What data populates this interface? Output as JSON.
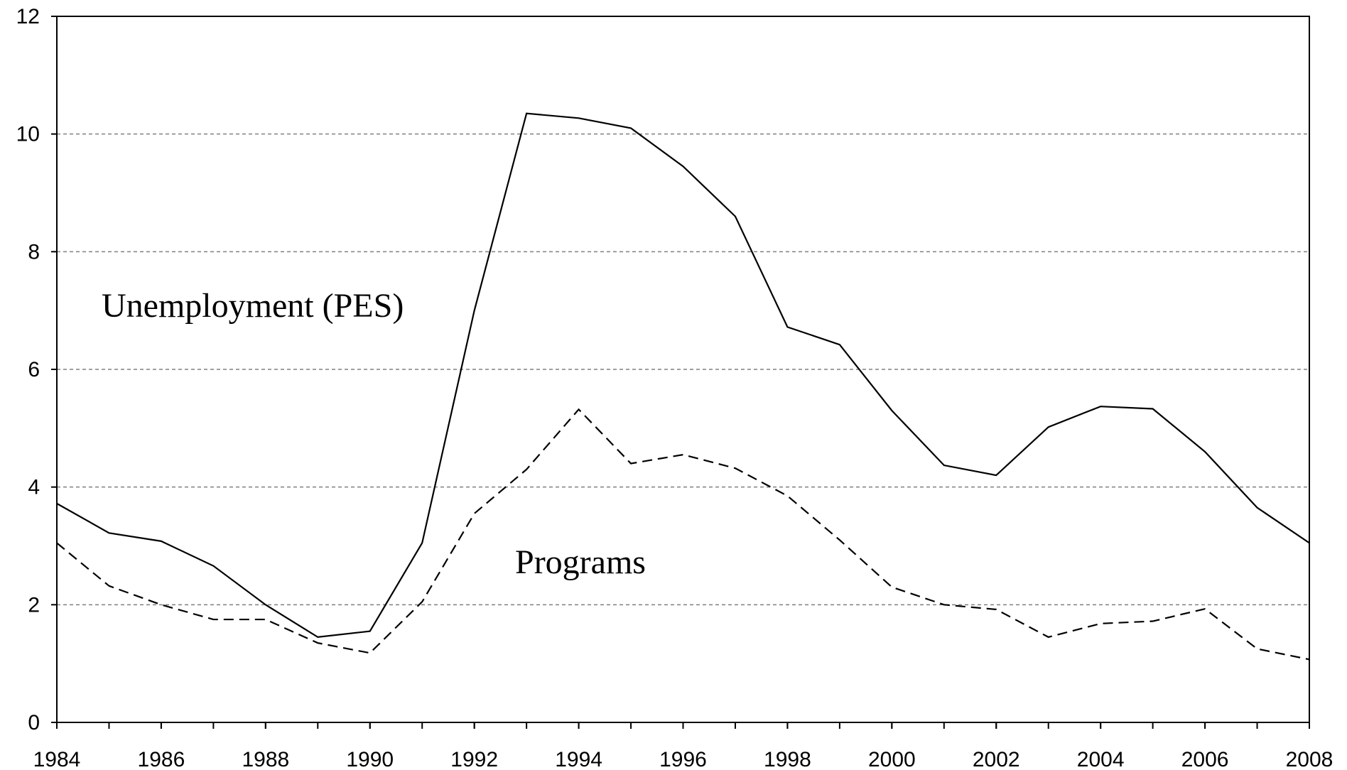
{
  "chart_data": {
    "type": "line",
    "x": [
      1984,
      1985,
      1986,
      1987,
      1988,
      1989,
      1990,
      1991,
      1992,
      1993,
      1994,
      1995,
      1996,
      1997,
      1998,
      1999,
      2000,
      2001,
      2002,
      2003,
      2004,
      2005,
      2006,
      2007,
      2008
    ],
    "series": [
      {
        "name": "Unemployment (PES)",
        "color": "#000000",
        "dash": "solid",
        "values": [
          3.72,
          3.22,
          3.08,
          2.66,
          2.0,
          1.45,
          1.55,
          3.05,
          7.0,
          10.35,
          10.27,
          10.1,
          9.45,
          8.6,
          6.72,
          6.42,
          5.3,
          4.37,
          4.2,
          5.02,
          5.37,
          5.33,
          4.6,
          3.65,
          3.05
        ]
      },
      {
        "name": "Programs",
        "color": "#000000",
        "dash": "dashed",
        "values": [
          3.05,
          2.32,
          2.0,
          1.75,
          1.75,
          1.35,
          1.18,
          2.05,
          3.55,
          4.3,
          5.32,
          4.4,
          4.55,
          4.32,
          3.85,
          3.1,
          2.3,
          2.0,
          1.92,
          1.45,
          1.68,
          1.72,
          1.93,
          1.25,
          1.07
        ]
      }
    ],
    "xlim": [
      1984,
      2008
    ],
    "xticks": [
      1984,
      1986,
      1988,
      1990,
      1992,
      1994,
      1996,
      1998,
      2000,
      2002,
      2004,
      2006,
      2008
    ],
    "ylim": [
      0,
      12
    ],
    "yticks": [
      0,
      2,
      4,
      6,
      8,
      10,
      12
    ],
    "grid": true
  }
}
